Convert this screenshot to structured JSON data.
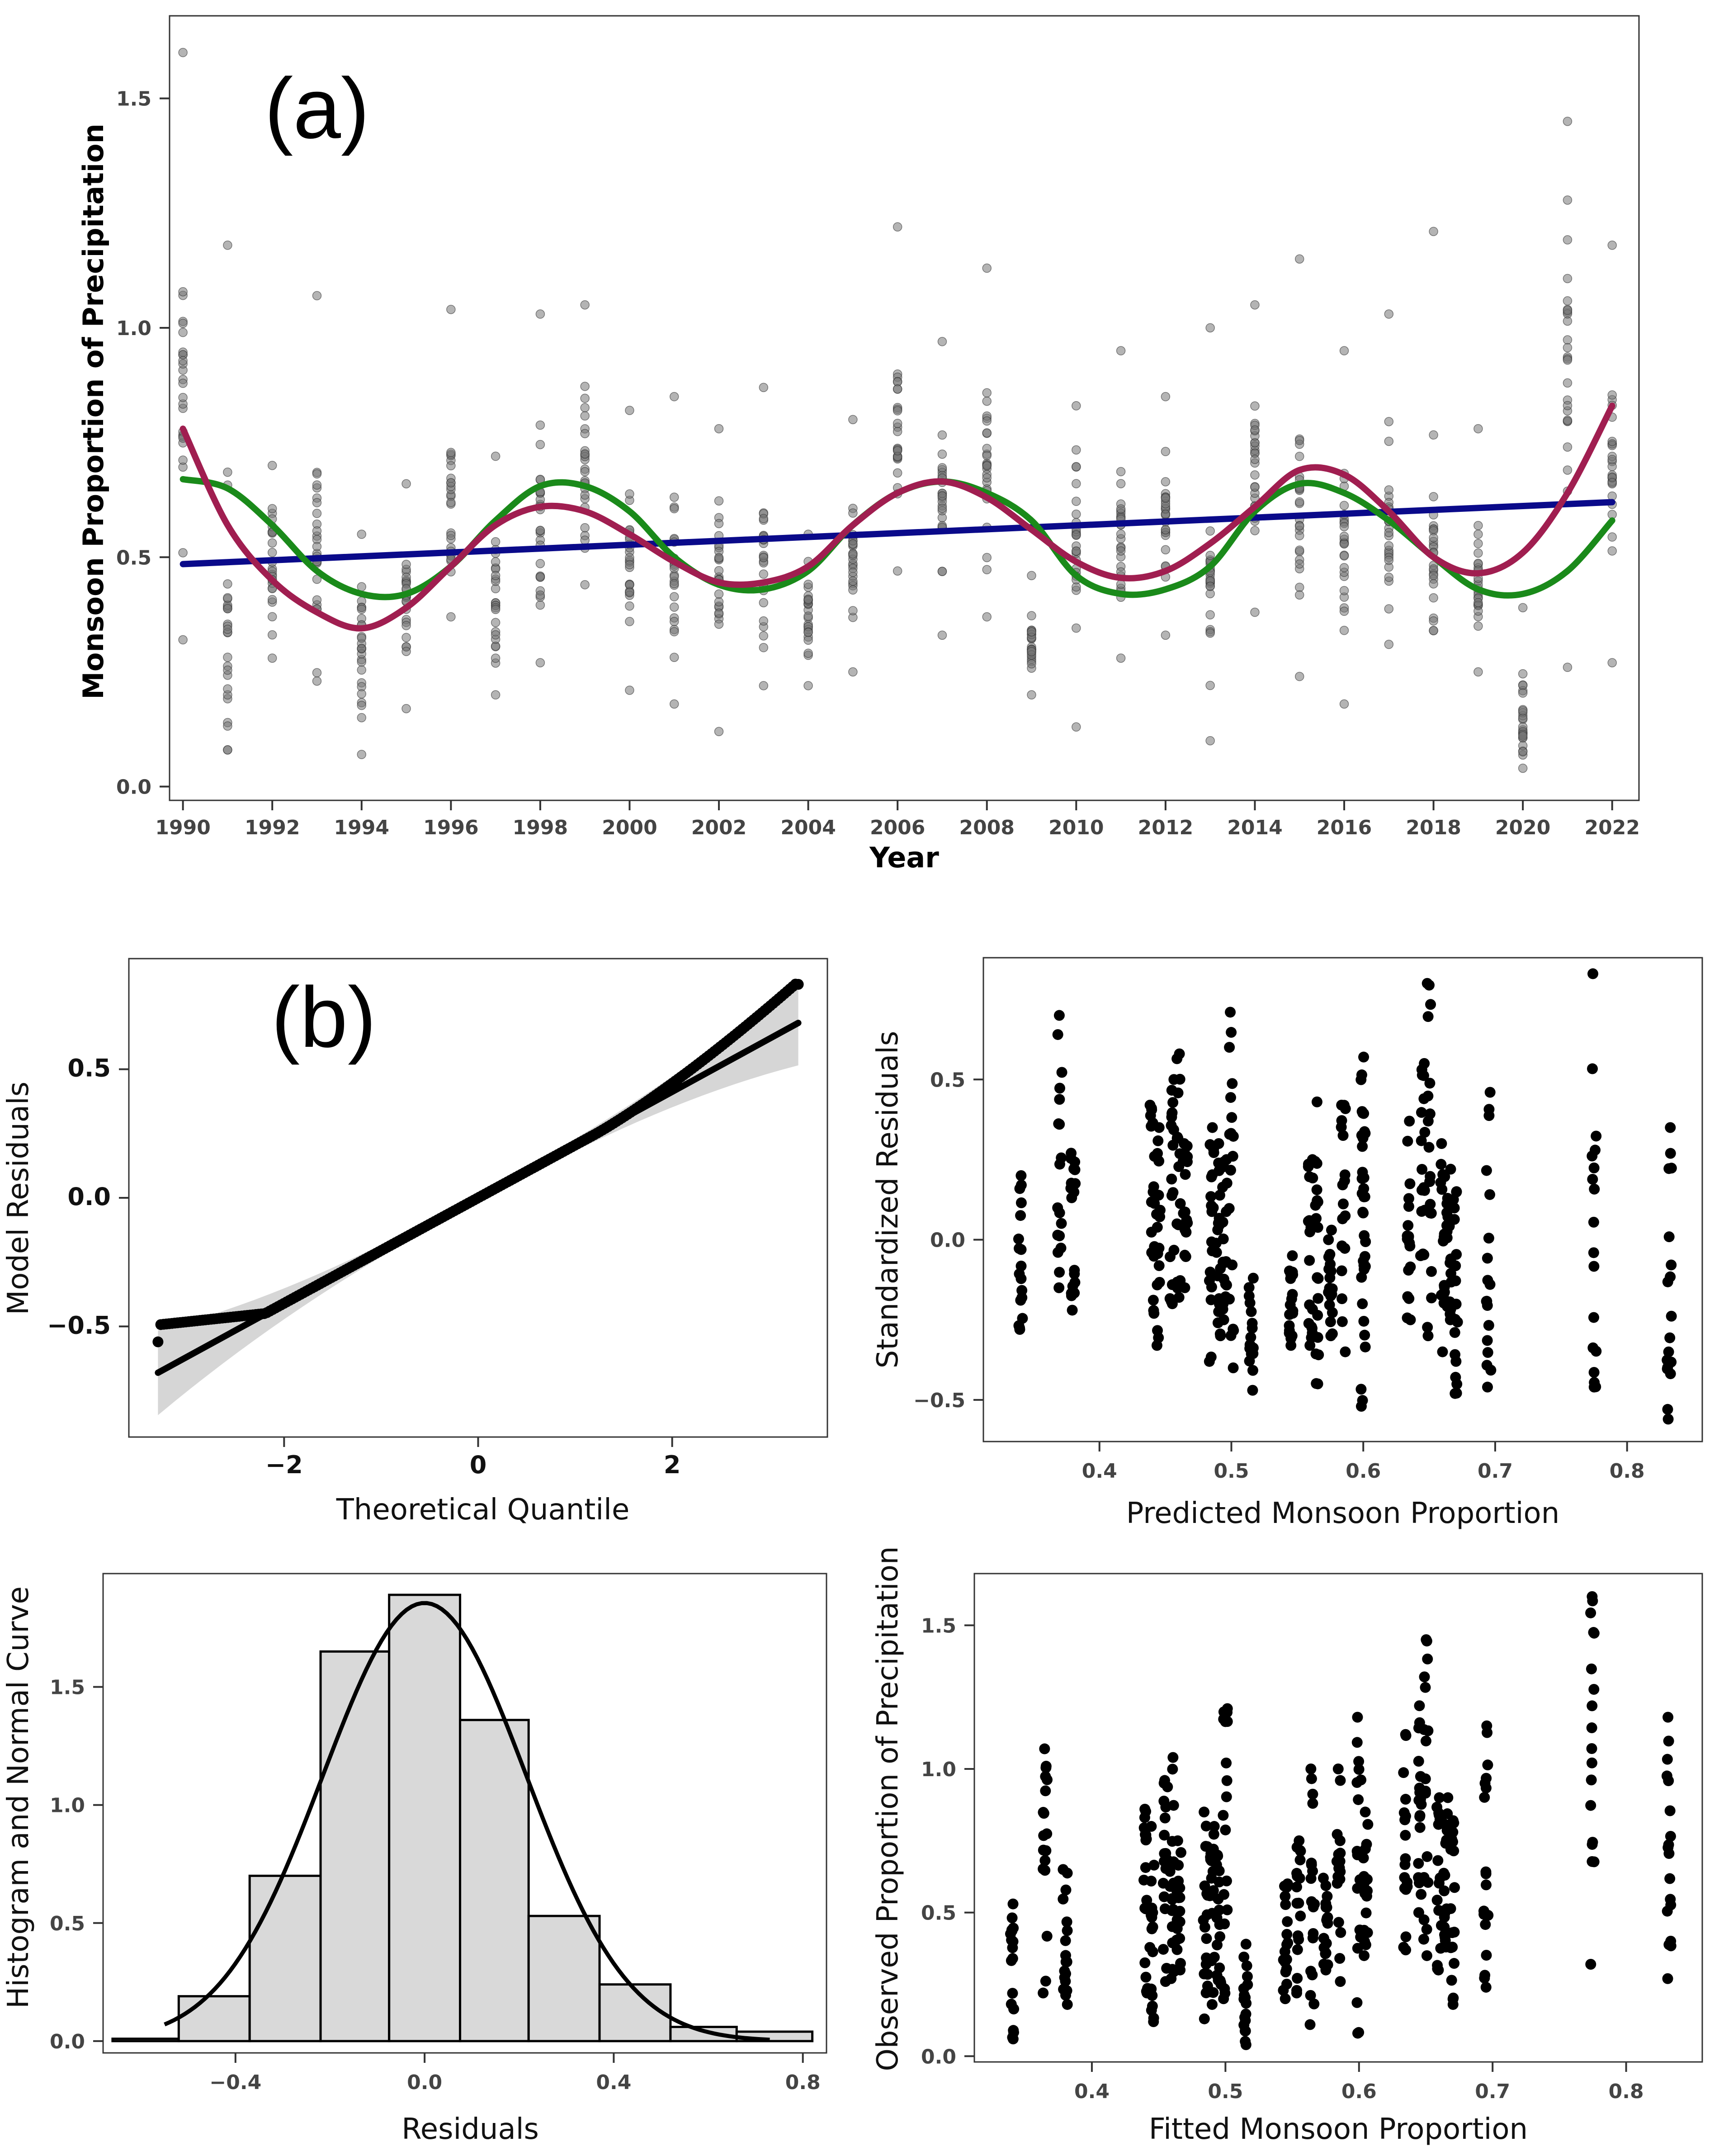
{
  "panel_labels": {
    "a": "(a)",
    "b": "(b)"
  },
  "colors": {
    "green": "#1a8a1a",
    "maroon": "#a01e50",
    "navy": "#0a0a8a",
    "points_gray": "#777777",
    "hist_fill": "#d9d9d9"
  },
  "chart_data": [
    {
      "type": "scatter",
      "panel": "a",
      "xlabel": "Year",
      "ylabel": "Monsoon Proportion of Precipitation",
      "xlim": [
        1989.7,
        2022.6
      ],
      "ylim": [
        -0.03,
        1.68
      ],
      "xticks": [
        1990,
        1992,
        1994,
        1996,
        1998,
        2000,
        2002,
        2004,
        2006,
        2008,
        2010,
        2012,
        2014,
        2016,
        2018,
        2020,
        2022
      ],
      "xtick_labels": [
        "1990",
        "1992",
        "1994",
        "1996",
        "1998",
        "2000",
        "2002",
        "2004",
        "2006",
        "2008",
        "2010",
        "2012",
        "2014",
        "2016",
        "2018",
        "2020",
        "2022"
      ],
      "yticks": [
        0,
        0.5,
        1.0,
        1.5
      ],
      "ytick_labels": [
        "0.0",
        "0.5",
        "1.0",
        "1.5"
      ],
      "yearly_summary": [
        {
          "year": 1990,
          "min": 0.32,
          "max": 1.6,
          "center": 0.85
        },
        {
          "year": 1991,
          "min": 0.08,
          "max": 1.18,
          "center": 0.3
        },
        {
          "year": 1992,
          "min": 0.28,
          "max": 0.7,
          "center": 0.48
        },
        {
          "year": 1993,
          "min": 0.23,
          "max": 1.07,
          "center": 0.5
        },
        {
          "year": 1994,
          "min": 0.07,
          "max": 0.55,
          "center": 0.3
        },
        {
          "year": 1995,
          "min": 0.17,
          "max": 0.66,
          "center": 0.4
        },
        {
          "year": 1996,
          "min": 0.37,
          "max": 1.04,
          "center": 0.6
        },
        {
          "year": 1997,
          "min": 0.2,
          "max": 0.72,
          "center": 0.4
        },
        {
          "year": 1998,
          "min": 0.27,
          "max": 1.03,
          "center": 0.6
        },
        {
          "year": 1999,
          "min": 0.44,
          "max": 1.05,
          "center": 0.7
        },
        {
          "year": 2000,
          "min": 0.21,
          "max": 0.82,
          "center": 0.48
        },
        {
          "year": 2001,
          "min": 0.18,
          "max": 0.85,
          "center": 0.45
        },
        {
          "year": 2002,
          "min": 0.12,
          "max": 0.78,
          "center": 0.45
        },
        {
          "year": 2003,
          "min": 0.22,
          "max": 0.87,
          "center": 0.48
        },
        {
          "year": 2004,
          "min": 0.22,
          "max": 0.55,
          "center": 0.38
        },
        {
          "year": 2005,
          "min": 0.25,
          "max": 0.8,
          "center": 0.5
        },
        {
          "year": 2006,
          "min": 0.47,
          "max": 1.22,
          "center": 0.75
        },
        {
          "year": 2007,
          "min": 0.33,
          "max": 0.97,
          "center": 0.6
        },
        {
          "year": 2008,
          "min": 0.37,
          "max": 1.13,
          "center": 0.7
        },
        {
          "year": 2009,
          "min": 0.2,
          "max": 0.46,
          "center": 0.3
        },
        {
          "year": 2010,
          "min": 0.13,
          "max": 0.83,
          "center": 0.55
        },
        {
          "year": 2011,
          "min": 0.28,
          "max": 0.95,
          "center": 0.55
        },
        {
          "year": 2012,
          "min": 0.33,
          "max": 0.85,
          "center": 0.6
        },
        {
          "year": 2013,
          "min": 0.1,
          "max": 1.0,
          "center": 0.45
        },
        {
          "year": 2014,
          "min": 0.38,
          "max": 1.05,
          "center": 0.65
        },
        {
          "year": 2015,
          "min": 0.24,
          "max": 1.15,
          "center": 0.6
        },
        {
          "year": 2016,
          "min": 0.18,
          "max": 0.95,
          "center": 0.55
        },
        {
          "year": 2017,
          "min": 0.31,
          "max": 1.03,
          "center": 0.55
        },
        {
          "year": 2018,
          "min": 0.34,
          "max": 1.21,
          "center": 0.5
        },
        {
          "year": 2019,
          "min": 0.25,
          "max": 0.78,
          "center": 0.45
        },
        {
          "year": 2020,
          "min": 0.04,
          "max": 0.39,
          "center": 0.15
        },
        {
          "year": 2021,
          "min": 0.26,
          "max": 1.45,
          "center": 0.95
        },
        {
          "year": 2022,
          "min": 0.27,
          "max": 1.18,
          "center": 0.7
        }
      ],
      "series": [
        {
          "name": "linear trend",
          "color": "navy",
          "x": [
            1990,
            2022
          ],
          "y": [
            0.485,
            0.62
          ]
        },
        {
          "name": "green fit",
          "color": "green",
          "x": [
            1990,
            1991,
            1992,
            1993,
            1994,
            1995,
            1996,
            1997,
            1998,
            1999,
            2000,
            2001,
            2002,
            2003,
            2004,
            2005,
            2006,
            2007,
            2008,
            2009,
            2010,
            2011,
            2012,
            2013,
            2014,
            2015,
            2016,
            2017,
            2018,
            2019,
            2020,
            2021,
            2022
          ],
          "y": [
            0.67,
            0.65,
            0.57,
            0.47,
            0.42,
            0.42,
            0.48,
            0.58,
            0.655,
            0.655,
            0.6,
            0.5,
            0.44,
            0.43,
            0.47,
            0.57,
            0.64,
            0.665,
            0.64,
            0.58,
            0.46,
            0.42,
            0.43,
            0.48,
            0.6,
            0.66,
            0.64,
            0.58,
            0.5,
            0.43,
            0.42,
            0.47,
            0.58
          ]
        },
        {
          "name": "maroon fit",
          "color": "maroon",
          "x": [
            1990,
            1991,
            1992,
            1993,
            1994,
            1995,
            1996,
            1997,
            1998,
            1999,
            2000,
            2001,
            2002,
            2003,
            2004,
            2005,
            2006,
            2007,
            2008,
            2009,
            2010,
            2011,
            2012,
            2013,
            2014,
            2015,
            2016,
            2017,
            2018,
            2019,
            2020,
            2021,
            2022
          ],
          "y": [
            0.78,
            0.57,
            0.45,
            0.38,
            0.345,
            0.39,
            0.48,
            0.57,
            0.61,
            0.6,
            0.55,
            0.49,
            0.445,
            0.445,
            0.48,
            0.57,
            0.64,
            0.665,
            0.63,
            0.56,
            0.49,
            0.455,
            0.47,
            0.53,
            0.61,
            0.69,
            0.68,
            0.6,
            0.5,
            0.465,
            0.51,
            0.64,
            0.83
          ]
        }
      ]
    },
    {
      "type": "scatter",
      "panel": "b-qq",
      "xlabel": "Theoretical Quantile",
      "ylabel": "Model Residuals",
      "xlim": [
        -3.6,
        3.6
      ],
      "ylim": [
        -0.93,
        0.93
      ],
      "xticks": [
        -2,
        0,
        2
      ],
      "xtick_labels": [
        "−2",
        "0",
        "2"
      ],
      "yticks": [
        -0.5,
        0.0,
        0.5
      ],
      "ytick_labels": [
        "−0.5",
        "0.0",
        "0.5"
      ],
      "ref_line": {
        "x": [
          -3.3,
          3.3
        ],
        "y": [
          -0.68,
          0.68
        ]
      },
      "ci_band_endpoints": {
        "x": [
          -3.3,
          3.3
        ],
        "lower": [
          -0.85,
          0.52
        ],
        "upper": [
          -0.52,
          0.85
        ]
      },
      "points": {
        "x_range": [
          -3.3,
          3.3
        ],
        "low": -0.56,
        "high": 0.83
      }
    },
    {
      "type": "scatter",
      "panel": "b-resid",
      "xlabel": "Predicted Monsoon Proportion",
      "ylabel": "Standardized Residuals",
      "xlim": [
        0.312,
        0.857
      ],
      "ylim": [
        -0.63,
        0.88
      ],
      "xticks": [
        0.4,
        0.5,
        0.6,
        0.7,
        0.8
      ],
      "xtick_labels": [
        "0.4",
        "0.5",
        "0.6",
        "0.7",
        "0.8"
      ],
      "yticks": [
        -0.5,
        0.0,
        0.5
      ],
      "ytick_labels": [
        "−0.5",
        "0.0",
        "0.5"
      ],
      "columns": [
        {
          "x": 0.34,
          "min": -0.28,
          "max": 0.2
        },
        {
          "x": 0.37,
          "min": -0.15,
          "max": 0.7
        },
        {
          "x": 0.38,
          "min": -0.22,
          "max": 0.27
        },
        {
          "x": 0.44,
          "min": -0.23,
          "max": 0.42
        },
        {
          "x": 0.445,
          "min": -0.33,
          "max": 0.35
        },
        {
          "x": 0.455,
          "min": -0.2,
          "max": 0.5
        },
        {
          "x": 0.46,
          "min": -0.18,
          "max": 0.58
        },
        {
          "x": 0.465,
          "min": -0.15,
          "max": 0.3
        },
        {
          "x": 0.485,
          "min": -0.38,
          "max": 0.35
        },
        {
          "x": 0.49,
          "min": -0.3,
          "max": 0.3
        },
        {
          "x": 0.495,
          "min": -0.25,
          "max": 0.25
        },
        {
          "x": 0.5,
          "min": -0.4,
          "max": 0.71
        },
        {
          "x": 0.515,
          "min": -0.47,
          "max": -0.12
        },
        {
          "x": 0.545,
          "min": -0.33,
          "max": -0.05
        },
        {
          "x": 0.56,
          "min": -0.33,
          "max": 0.25
        },
        {
          "x": 0.565,
          "min": -0.45,
          "max": 0.43
        },
        {
          "x": 0.575,
          "min": -0.3,
          "max": 0.03
        },
        {
          "x": 0.585,
          "min": -0.35,
          "max": 0.42
        },
        {
          "x": 0.6,
          "min": -0.52,
          "max": 0.57
        },
        {
          "x": 0.6,
          "min": -0.2,
          "max": 0.4
        },
        {
          "x": 0.635,
          "min": -0.25,
          "max": 0.37
        },
        {
          "x": 0.645,
          "min": -0.05,
          "max": 0.55
        },
        {
          "x": 0.65,
          "min": -0.3,
          "max": 0.8
        },
        {
          "x": 0.66,
          "min": -0.35,
          "max": 0.3
        },
        {
          "x": 0.665,
          "min": -0.25,
          "max": 0.22
        },
        {
          "x": 0.67,
          "min": -0.48,
          "max": 0.15
        },
        {
          "x": 0.695,
          "min": -0.46,
          "max": 0.46
        },
        {
          "x": 0.775,
          "min": -0.46,
          "max": 0.83
        },
        {
          "x": 0.832,
          "min": -0.56,
          "max": 0.35
        }
      ]
    },
    {
      "type": "bar",
      "panel": "b-hist",
      "xlabel": "Residuals",
      "ylabel": "Histogram and Normal Curve",
      "xlim": [
        -0.68,
        0.85
      ],
      "ylim": [
        -0.05,
        1.98
      ],
      "xticks": [
        -0.4,
        0.0,
        0.4,
        0.8
      ],
      "xtick_labels": [
        "−0.4",
        "0.0",
        "0.4",
        "0.8"
      ],
      "yticks": [
        0.0,
        0.5,
        1.0,
        1.5
      ],
      "ytick_labels": [
        "0.0",
        "0.5",
        "1.0",
        "1.5"
      ],
      "bins": [
        {
          "x0": -0.66,
          "x1": -0.52,
          "value": 0.01
        },
        {
          "x0": -0.52,
          "x1": -0.37,
          "value": 0.19
        },
        {
          "x0": -0.37,
          "x1": -0.22,
          "value": 0.7
        },
        {
          "x0": -0.22,
          "x1": -0.075,
          "value": 1.65
        },
        {
          "x0": -0.075,
          "x1": 0.075,
          "value": 1.89
        },
        {
          "x0": 0.075,
          "x1": 0.22,
          "value": 1.36
        },
        {
          "x0": 0.22,
          "x1": 0.37,
          "value": 0.53
        },
        {
          "x0": 0.37,
          "x1": 0.52,
          "value": 0.24
        },
        {
          "x0": 0.52,
          "x1": 0.66,
          "value": 0.06
        },
        {
          "x0": 0.66,
          "x1": 0.82,
          "value": 0.04
        }
      ],
      "normal_curve": {
        "mean": 0.0,
        "sd": 0.215,
        "x_range": [
          -0.55,
          0.73
        ]
      }
    },
    {
      "type": "scatter",
      "panel": "b-obs",
      "xlabel": "Fitted Monsoon Proportion",
      "ylabel": "Observed Proportion of Precipitation",
      "xlim": [
        0.312,
        0.857
      ],
      "ylim": [
        -0.02,
        1.68
      ],
      "xticks": [
        0.4,
        0.5,
        0.6,
        0.7,
        0.8
      ],
      "xtick_labels": [
        "0.4",
        "0.5",
        "0.6",
        "0.7",
        "0.8"
      ],
      "yticks": [
        0.0,
        0.5,
        1.0,
        1.5
      ],
      "ytick_labels": [
        "0.0",
        "0.5",
        "1.0",
        "1.5"
      ],
      "columns": [
        {
          "x": 0.34,
          "min": 0.06,
          "max": 0.53
        },
        {
          "x": 0.365,
          "min": 0.22,
          "max": 1.07
        },
        {
          "x": 0.38,
          "min": 0.18,
          "max": 0.65
        },
        {
          "x": 0.44,
          "min": 0.22,
          "max": 0.86
        },
        {
          "x": 0.445,
          "min": 0.12,
          "max": 0.8
        },
        {
          "x": 0.455,
          "min": 0.26,
          "max": 0.96
        },
        {
          "x": 0.46,
          "min": 0.27,
          "max": 1.04
        },
        {
          "x": 0.465,
          "min": 0.3,
          "max": 0.75
        },
        {
          "x": 0.485,
          "min": 0.13,
          "max": 0.85
        },
        {
          "x": 0.49,
          "min": 0.18,
          "max": 0.8
        },
        {
          "x": 0.495,
          "min": 0.25,
          "max": 0.7
        },
        {
          "x": 0.5,
          "min": 0.2,
          "max": 1.21
        },
        {
          "x": 0.515,
          "min": 0.04,
          "max": 0.39
        },
        {
          "x": 0.545,
          "min": 0.2,
          "max": 0.6
        },
        {
          "x": 0.555,
          "min": 0.22,
          "max": 0.75
        },
        {
          "x": 0.565,
          "min": 0.11,
          "max": 1.0
        },
        {
          "x": 0.575,
          "min": 0.3,
          "max": 0.62
        },
        {
          "x": 0.585,
          "min": 0.26,
          "max": 1.0
        },
        {
          "x": 0.6,
          "min": 0.08,
          "max": 1.18
        },
        {
          "x": 0.605,
          "min": 0.35,
          "max": 0.85
        },
        {
          "x": 0.635,
          "min": 0.37,
          "max": 1.12
        },
        {
          "x": 0.645,
          "min": 0.5,
          "max": 1.22
        },
        {
          "x": 0.65,
          "min": 0.35,
          "max": 1.45
        },
        {
          "x": 0.66,
          "min": 0.3,
          "max": 0.9
        },
        {
          "x": 0.665,
          "min": 0.38,
          "max": 0.9
        },
        {
          "x": 0.67,
          "min": 0.18,
          "max": 0.82
        },
        {
          "x": 0.695,
          "min": 0.24,
          "max": 1.15
        },
        {
          "x": 0.775,
          "min": 0.32,
          "max": 1.6
        },
        {
          "x": 0.832,
          "min": 0.27,
          "max": 1.18
        }
      ]
    }
  ]
}
